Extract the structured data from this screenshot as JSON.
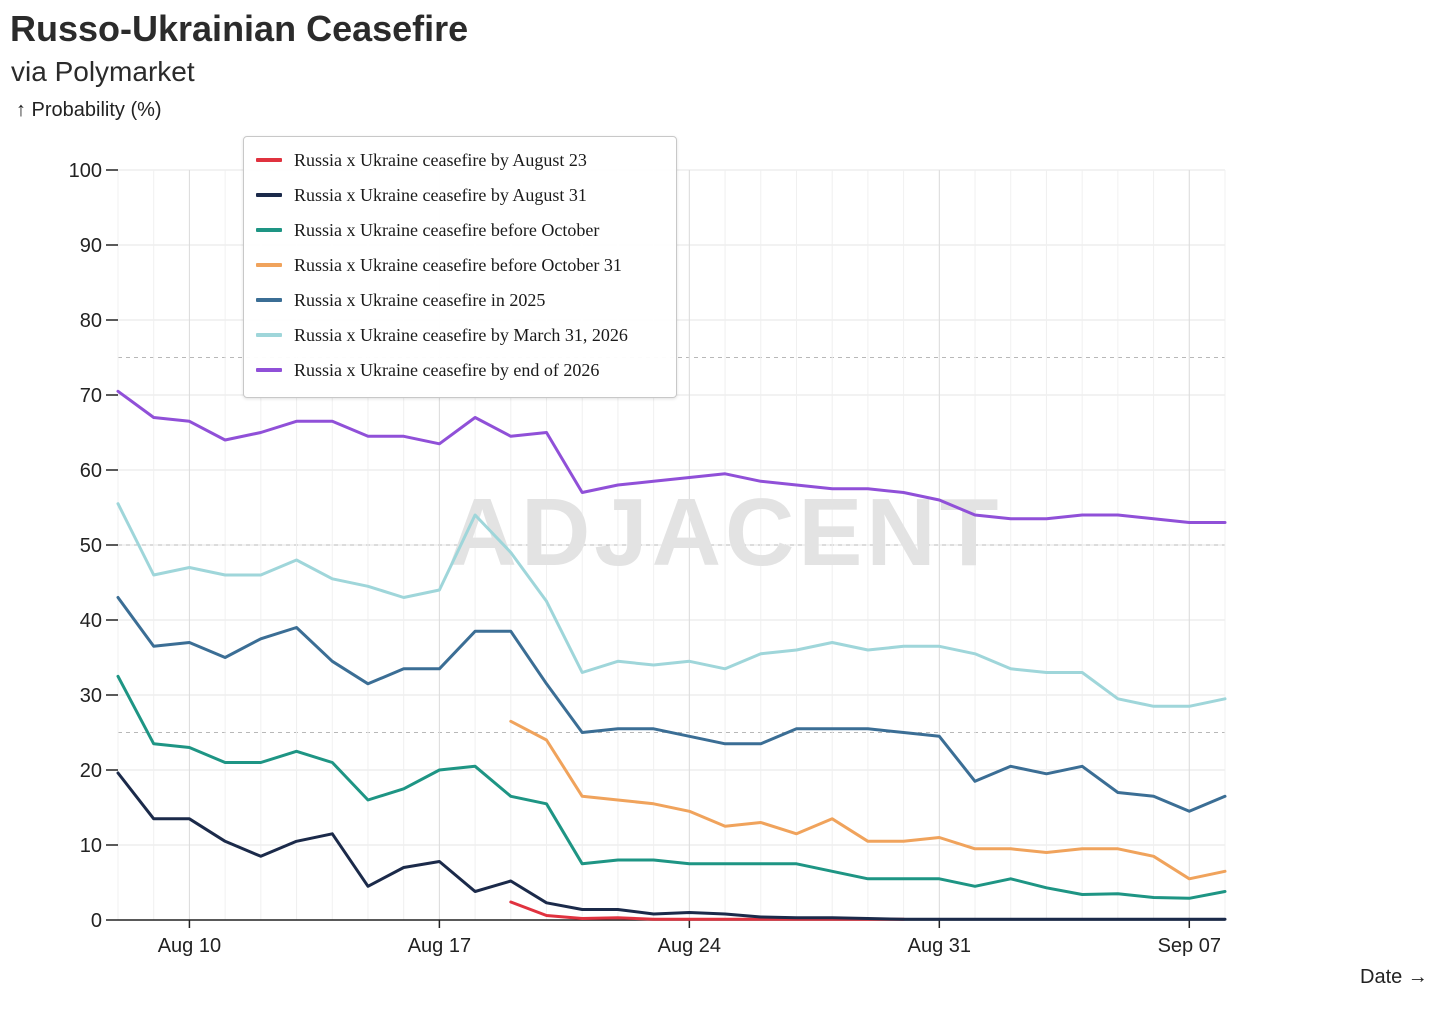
{
  "chart_data": {
    "type": "line",
    "title": "Russo-Ukrainian Ceasefire",
    "subtitle": "via Polymarket",
    "ylabel": "↑ Probability (%)",
    "xlabel": "Date →",
    "watermark": "ADJACENT",
    "ylim": [
      0,
      100
    ],
    "yticks": [
      0,
      10,
      20,
      30,
      40,
      50,
      60,
      70,
      80,
      90,
      100
    ],
    "xlim": [
      "2025-08-08",
      "2025-09-08"
    ],
    "xticks": [
      {
        "label": "Aug 10",
        "date": "2025-08-10"
      },
      {
        "label": "Aug 17",
        "date": "2025-08-17"
      },
      {
        "label": "Aug 24",
        "date": "2025-08-24"
      },
      {
        "label": "Aug 31",
        "date": "2025-08-31"
      },
      {
        "label": "Sep 07",
        "date": "2025-09-07"
      }
    ],
    "reference_lines": [
      25,
      50,
      75
    ],
    "x": [
      "2025-08-08",
      "2025-08-09",
      "2025-08-10",
      "2025-08-11",
      "2025-08-12",
      "2025-08-13",
      "2025-08-14",
      "2025-08-15",
      "2025-08-16",
      "2025-08-17",
      "2025-08-18",
      "2025-08-19",
      "2025-08-20",
      "2025-08-21",
      "2025-08-22",
      "2025-08-23",
      "2025-08-24",
      "2025-08-25",
      "2025-08-26",
      "2025-08-27",
      "2025-08-28",
      "2025-08-29",
      "2025-08-30",
      "2025-08-31",
      "2025-09-01",
      "2025-09-02",
      "2025-09-03",
      "2025-09-04",
      "2025-09-05",
      "2025-09-06",
      "2025-09-07",
      "2025-09-08"
    ],
    "series": [
      {
        "name": "Russia x Ukraine ceasefire by August 23",
        "color": "#e0323f",
        "values": [
          null,
          null,
          null,
          null,
          null,
          null,
          null,
          null,
          null,
          null,
          null,
          2.4,
          0.6,
          0.2,
          0.3,
          0.1,
          0.1,
          0.1,
          0.1,
          0.1,
          0.1,
          0.1,
          0.1,
          null,
          null,
          null,
          null,
          null,
          null,
          null,
          null,
          null
        ]
      },
      {
        "name": "Russia x Ukraine ceasefire by August 31",
        "color": "#1b2a4a",
        "values": [
          19.6,
          13.5,
          13.5,
          10.5,
          8.5,
          10.5,
          11.5,
          4.5,
          7,
          7.8,
          3.8,
          5.2,
          2.3,
          1.4,
          1.4,
          0.8,
          1,
          0.8,
          0.4,
          0.3,
          0.3,
          0.2,
          0.1,
          0.1,
          0.1,
          0.1,
          0.1,
          0.1,
          0.1,
          0.1,
          0.1,
          0.1
        ]
      },
      {
        "name": "Russia x Ukraine ceasefire before October",
        "color": "#1e9584",
        "values": [
          32.5,
          23.5,
          23,
          21,
          21,
          22.5,
          21,
          16,
          17.5,
          20,
          20.5,
          16.5,
          15.5,
          7.5,
          8,
          8,
          7.5,
          7.5,
          7.5,
          7.5,
          6.5,
          5.5,
          5.5,
          5.5,
          4.5,
          5.5,
          4.3,
          3.4,
          3.5,
          3,
          2.9,
          3.8
        ]
      },
      {
        "name": "Russia x Ukraine ceasefire before October 31",
        "color": "#f0a35c",
        "values": [
          null,
          null,
          null,
          null,
          null,
          null,
          null,
          null,
          null,
          null,
          null,
          26.5,
          24,
          16.5,
          16,
          15.5,
          14.5,
          12.5,
          13,
          11.5,
          13.5,
          10.5,
          10.5,
          11,
          9.5,
          9.5,
          9,
          9.5,
          9.5,
          8.5,
          5.5,
          6.5
        ]
      },
      {
        "name": "Russia x Ukraine ceasefire in 2025",
        "color": "#3b6e95",
        "values": [
          43,
          36.5,
          37,
          35,
          37.5,
          39,
          34.5,
          31.5,
          33.5,
          33.5,
          38.5,
          38.5,
          31.5,
          25,
          25.5,
          25.5,
          24.5,
          23.5,
          23.5,
          25.5,
          25.5,
          25.5,
          25,
          24.5,
          18.5,
          20.5,
          19.5,
          20.5,
          17,
          16.5,
          14.5,
          16.5
        ]
      },
      {
        "name": "Russia x Ukraine ceasefire by March 31, 2026",
        "color": "#9fd6da",
        "values": [
          55.5,
          46,
          47,
          46,
          46,
          48,
          45.5,
          44.5,
          43,
          44,
          54,
          49,
          42.5,
          33,
          34.5,
          34,
          34.5,
          33.5,
          35.5,
          36,
          37,
          36,
          36.5,
          36.5,
          35.5,
          33.5,
          33,
          33,
          29.5,
          28.5,
          28.5,
          29.5
        ]
      },
      {
        "name": "Russia x Ukraine ceasefire by end of 2026",
        "color": "#9050d8",
        "values": [
          70.5,
          67,
          66.5,
          64,
          65,
          66.5,
          66.5,
          64.5,
          64.5,
          63.5,
          67,
          64.5,
          65,
          57,
          58,
          58.5,
          59,
          59.5,
          58.5,
          58,
          57.5,
          57.5,
          57,
          56,
          54,
          53.5,
          53.5,
          54,
          54,
          53.5,
          53,
          53
        ]
      }
    ]
  }
}
